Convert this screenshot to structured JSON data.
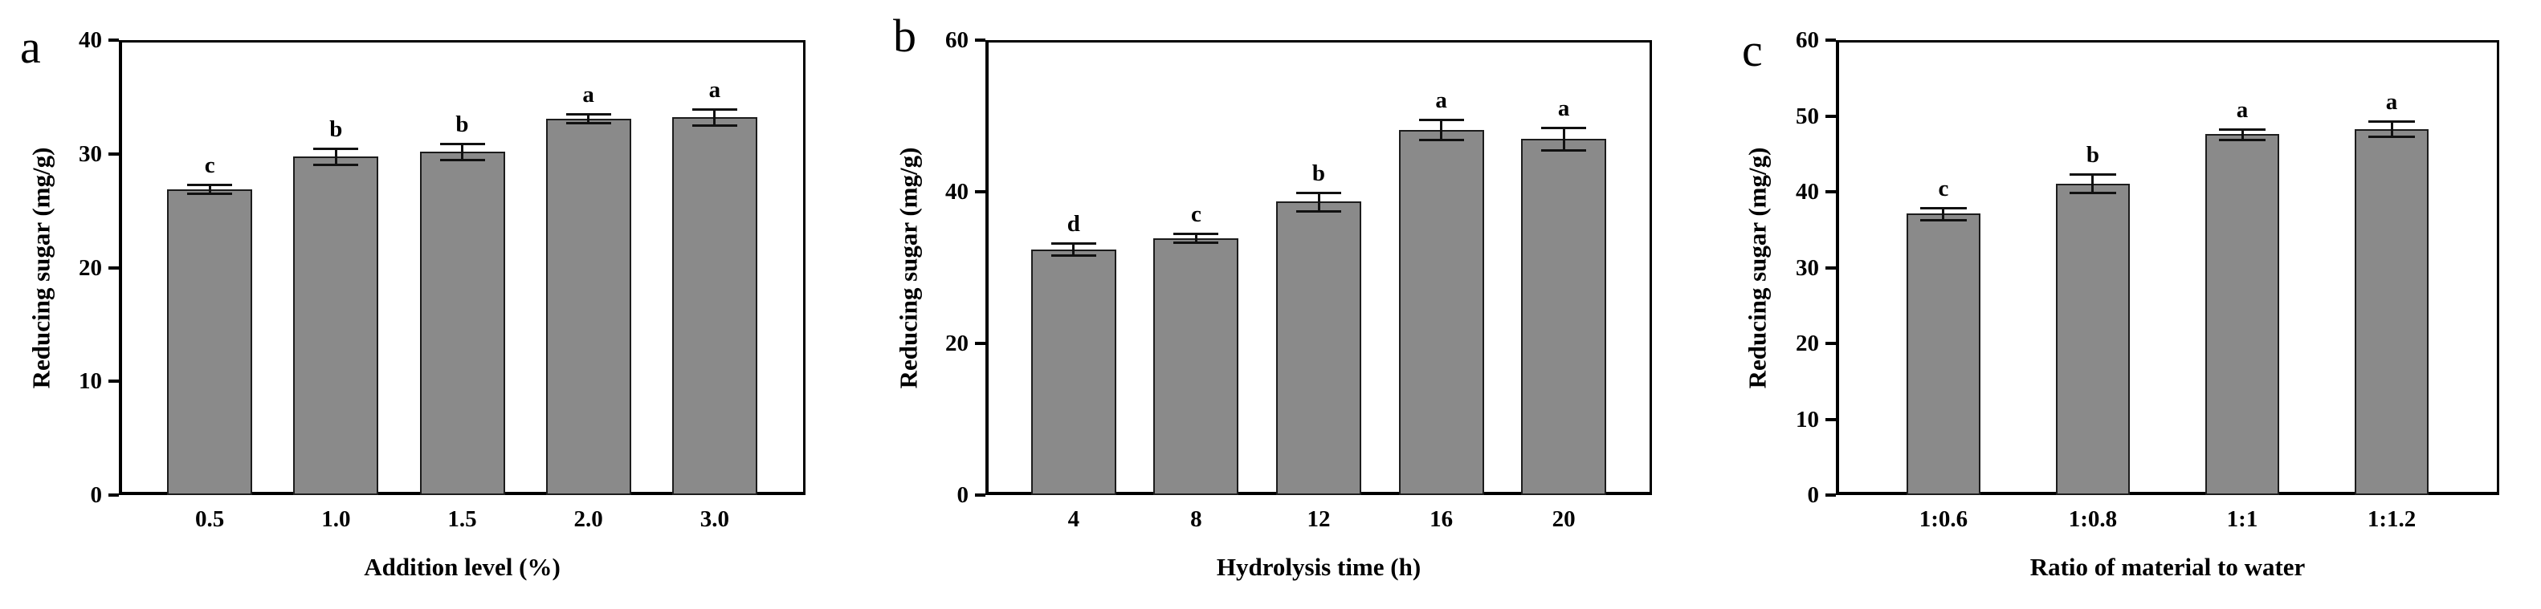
{
  "figure": {
    "background": "#ffffff",
    "bar_fill": "#8a8a8a",
    "bar_edge": "#1c1c1c",
    "axis_color": "#000000",
    "text_color": "#000000"
  },
  "chart_data": [
    {
      "type": "bar",
      "panel_label": "a",
      "xlabel": "Addition level (%)",
      "ylabel": "Reducing sugar (mg/g)",
      "ylim": [
        0,
        40
      ],
      "yticks": [
        "0",
        "10",
        "20",
        "30",
        "40"
      ],
      "ytick_values": [
        0,
        10,
        20,
        30,
        40
      ],
      "categories": [
        "0.5",
        "1.0",
        "1.5",
        "2.0",
        "3.0"
      ],
      "values": [
        26.9,
        29.8,
        30.2,
        33.1,
        33.2
      ],
      "errors": [
        0.4,
        0.7,
        0.7,
        0.4,
        0.7
      ],
      "sig_letters": [
        "c",
        "b",
        "b",
        "a",
        "a"
      ],
      "grid": false,
      "legend": null
    },
    {
      "type": "bar",
      "panel_label": "b",
      "xlabel": "Hydrolysis time (h)",
      "ylabel": "Reducing sugar (mg/g)",
      "ylim": [
        0,
        60
      ],
      "yticks": [
        "0",
        "20",
        "40",
        "60"
      ],
      "ytick_values": [
        0,
        20,
        40,
        60
      ],
      "categories": [
        "4",
        "8",
        "12",
        "16",
        "20"
      ],
      "values": [
        32.4,
        33.9,
        38.7,
        48.2,
        47.0
      ],
      "errors": [
        0.8,
        0.6,
        1.2,
        1.3,
        1.5
      ],
      "sig_letters": [
        "d",
        "c",
        "b",
        "a",
        "a"
      ],
      "grid": false,
      "legend": null
    },
    {
      "type": "bar",
      "panel_label": "c",
      "xlabel": "Ratio of material to water",
      "ylabel": "Reducing sugar (mg/g)",
      "ylim": [
        0,
        60
      ],
      "yticks": [
        "0",
        "10",
        "20",
        "30",
        "40",
        "50",
        "60"
      ],
      "ytick_values": [
        0,
        10,
        20,
        30,
        40,
        50,
        60
      ],
      "categories": [
        "1:0.6",
        "1:0.8",
        "1:1",
        "1:1.2"
      ],
      "values": [
        37.1,
        41.1,
        47.6,
        48.3
      ],
      "errors": [
        0.8,
        1.2,
        0.7,
        1.0
      ],
      "sig_letters": [
        "c",
        "b",
        "a",
        "a"
      ],
      "grid": false,
      "legend": null
    }
  ]
}
